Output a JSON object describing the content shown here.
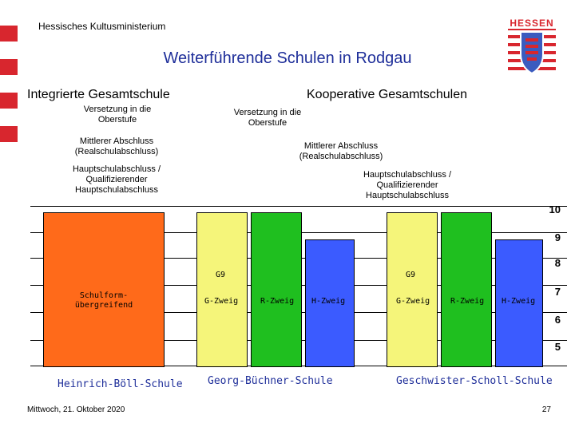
{
  "header": {
    "ministry": "Hessisches Kultusministerium",
    "logo_text": "HESSEN",
    "title": "Weiterführende Schulen in Rodgau"
  },
  "sections": {
    "igs": "Integrierte Gesamtschule",
    "kgs": "Kooperative Gesamtschulen"
  },
  "annotations": {
    "igs_versetzung": "Versetzung in die Oberstufe",
    "igs_mittlerer": "Mittlerer Abschluss (Realschulabschluss)",
    "igs_haupt": "Hauptschulabschluss / Qualifizierender Hauptschulabschluss",
    "kgs_versetzung": "Versetzung in die Oberstufe",
    "kgs_mittlerer": "Mittlerer Abschluss (Realschulabschluss)",
    "kgs_haupt": "Hauptschulabschluss / Qualifizierender Hauptschulabschluss"
  },
  "grade_levels": [
    "10",
    "9",
    "8",
    "7",
    "6",
    "5"
  ],
  "bars": {
    "igs_label": "Schulform-übergreifend",
    "g9": "G9",
    "g_zweig": "G-Zweig",
    "r_zweig": "R-Zweig",
    "h_zweig": "H-Zweig"
  },
  "schools": {
    "heinrich": "Heinrich-Böll-Schule",
    "georg": "Georg-Büchner-Schule",
    "geschwister": "Geschwister-Scholl-Schule"
  },
  "colors": {
    "orange": "#ff6a1a",
    "yellow": "#f5f57a",
    "green": "#1fbf1f",
    "blue": "#3b5bff",
    "brand_red": "#d8262e",
    "title_blue": "#1f2f9a"
  },
  "footer": {
    "date": "Mittwoch, 21. Oktober 2020",
    "page": "27"
  }
}
